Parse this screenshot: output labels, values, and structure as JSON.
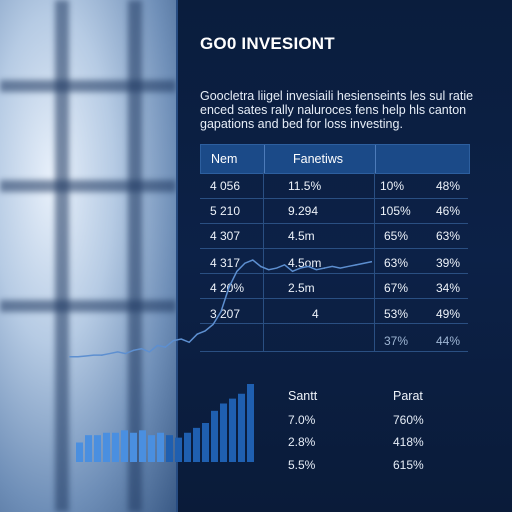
{
  "header": {
    "title": "GO0 INVESIONT",
    "description": [
      "Goocletra liigel invesiaili hesienseints les sul ratie",
      "enced sates rally naluroces fens help hls canton",
      "gapations and bed for loss investing."
    ]
  },
  "table": {
    "columns": [
      "Nem",
      "Fanetiws"
    ],
    "rows": [
      [
        "4 056",
        "11.5%",
        "10%",
        "48%"
      ],
      [
        "5 210",
        "9.294",
        "105%",
        "46%"
      ],
      [
        "4 307",
        "4.5m",
        "65%",
        "63%"
      ],
      [
        "4 317",
        "4.5om",
        "63%",
        "39%"
      ],
      [
        "4 20%",
        "2.5m",
        "67%",
        "34%"
      ],
      [
        "3 207",
        "4",
        "53%",
        "49%"
      ],
      [
        "",
        "",
        "37%",
        "44%"
      ]
    ]
  },
  "bottom_table": {
    "columns": [
      "Santt",
      "Parat"
    ],
    "rows": [
      [
        "7.0%",
        "760%"
      ],
      [
        "2.8%",
        "418%"
      ],
      [
        "5.5%",
        "615%"
      ]
    ]
  },
  "chart_data": [
    {
      "type": "line",
      "x": [
        0,
        1,
        2,
        3,
        4,
        5,
        6,
        7,
        8,
        9,
        10,
        11,
        12,
        13,
        14,
        15,
        16,
        17,
        18,
        19,
        20,
        21,
        22,
        23,
        24,
        25,
        26,
        27,
        28,
        29,
        30,
        31,
        32,
        33,
        34,
        35,
        36,
        37,
        38
      ],
      "y": [
        2,
        2,
        2.5,
        3,
        3,
        4,
        5,
        4,
        6,
        7,
        5,
        9,
        8,
        12,
        13,
        11,
        16,
        18,
        22,
        30,
        45,
        55,
        60,
        62,
        58,
        56,
        57,
        59,
        55,
        57,
        58,
        56,
        57,
        58,
        57,
        58,
        59,
        60,
        61
      ]
    },
    {
      "type": "bar",
      "values": [
        8,
        11,
        11,
        12,
        12,
        13,
        12,
        13,
        11,
        12,
        11,
        10,
        12,
        14,
        16,
        21,
        24,
        26,
        28,
        32
      ]
    }
  ],
  "colors": {
    "panel_bg": "#0b1f3f",
    "header_bg": "#1b4a88",
    "line": "#5d8fd0",
    "bar_light": "#4a8fe0",
    "bar_dark": "#1f5fb0"
  }
}
